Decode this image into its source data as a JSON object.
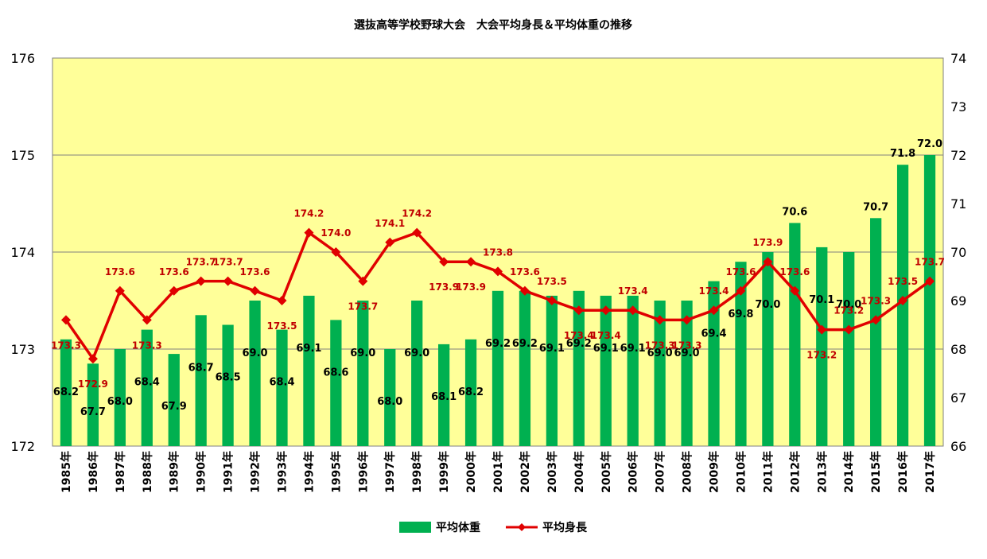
{
  "chart_data": {
    "type": "bar+line",
    "title": "選抜高等学校野球大会　大会平均身長＆平均体重の推移",
    "categories": [
      "1985年",
      "1986年",
      "1987年",
      "1988年",
      "1989年",
      "1990年",
      "1991年",
      "1992年",
      "1993年",
      "1994年",
      "1995年",
      "1996年",
      "1997年",
      "1998年",
      "1999年",
      "2000年",
      "2001年",
      "2002年",
      "2003年",
      "2004年",
      "2005年",
      "2006年",
      "2007年",
      "2008年",
      "2009年",
      "2010年",
      "2011年",
      "2012年",
      "2013年",
      "2014年",
      "2015年",
      "2016年",
      "2017年"
    ],
    "series": [
      {
        "name": "平均体重",
        "type": "bar",
        "axis": "right",
        "color": "#00b050",
        "values": [
          68.2,
          67.7,
          68.0,
          68.4,
          67.9,
          68.7,
          68.5,
          69.0,
          68.4,
          69.1,
          68.6,
          69.0,
          68.0,
          69.0,
          68.1,
          68.2,
          69.2,
          69.2,
          69.1,
          69.2,
          69.1,
          69.1,
          69.0,
          69.0,
          69.4,
          69.8,
          70.0,
          70.6,
          70.1,
          70.0,
          70.7,
          71.8,
          72.0
        ],
        "labels": [
          "68.2",
          "67.7",
          "68.0",
          "68.4",
          "67.9",
          "68.7",
          "68.5",
          "69.0",
          "68.4",
          "69.1",
          "68.6",
          "69.0",
          "68.0",
          "69.0",
          "68.1",
          "68.2",
          "69.2",
          "69.2",
          "69.1",
          "69.2",
          "69.1",
          "69.1",
          "69.0",
          "69.0",
          "69.4",
          "69.8",
          "70.0",
          "70.6",
          "70.1",
          "70.0",
          "70.7",
          "71.8",
          "72.0"
        ]
      },
      {
        "name": "平均身長",
        "type": "line",
        "axis": "left",
        "color": "#e00000",
        "values": [
          173.3,
          172.9,
          173.6,
          173.3,
          173.6,
          173.7,
          173.7,
          173.6,
          173.5,
          174.2,
          174.0,
          173.7,
          174.1,
          174.2,
          173.9,
          173.9,
          173.8,
          173.6,
          173.5,
          173.4,
          173.4,
          173.4,
          173.3,
          173.3,
          173.4,
          173.6,
          173.9,
          173.6,
          173.2,
          173.2,
          173.3,
          173.5,
          173.7
        ],
        "labels": [
          "173.3",
          "172.9",
          "173.6",
          "173.3",
          "173.6",
          "173.7",
          "173.7",
          "173.6",
          "173.5",
          "174.2",
          "174.0",
          "173.7",
          "174.1",
          "174.2",
          "173.9",
          "173.9",
          "173.8",
          "173.6",
          "173.5",
          "173.4",
          "173.4",
          "173.4",
          "173.3",
          "173.3",
          "173.4",
          "173.6",
          "173.9",
          "173.6",
          "173.2",
          "173.2",
          "173.3",
          "173.5",
          "173.7"
        ]
      }
    ],
    "y_left": {
      "min": 172,
      "max": 176,
      "ticks": [
        "172",
        "173",
        "174",
        "175",
        "176"
      ]
    },
    "y_right": {
      "min": 66,
      "max": 74,
      "ticks": [
        "66",
        "67",
        "68",
        "69",
        "70",
        "71",
        "72",
        "73",
        "74"
      ]
    },
    "grid": true,
    "plot_background": "#ffff99",
    "legend_position": "bottom"
  }
}
